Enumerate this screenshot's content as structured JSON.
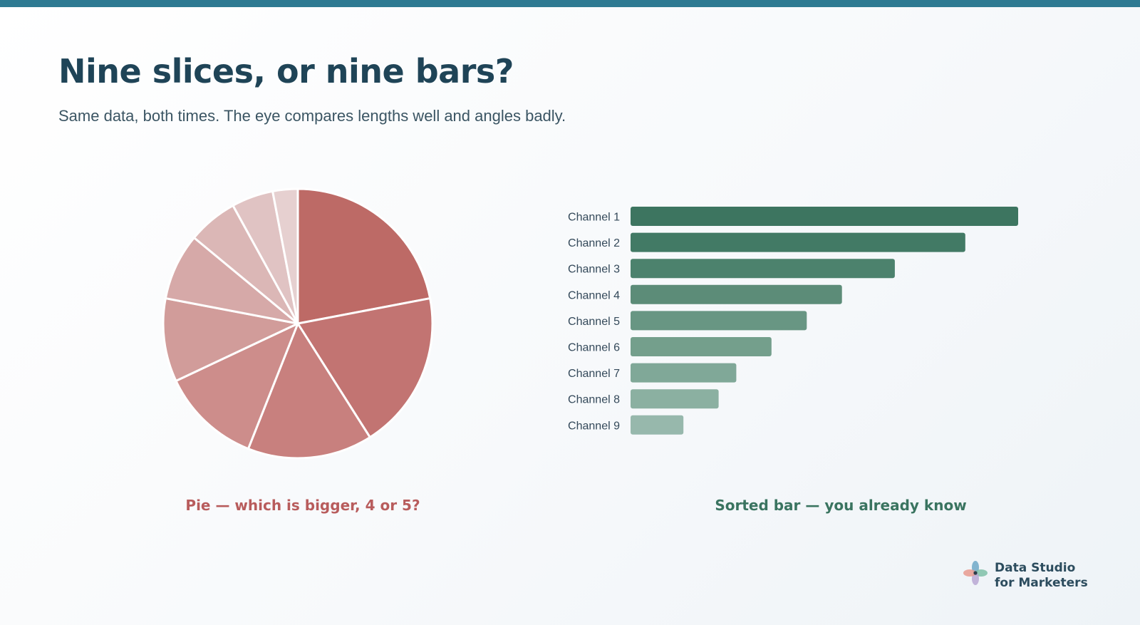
{
  "slide": {
    "title": "Nine slices, or nine bars?",
    "subtitle": "Same data, both times. The eye compares lengths well and angles badly.",
    "accent_color": "#2e7a92"
  },
  "captions": {
    "pie": "Pie — which is bigger, 4 or 5?",
    "bar": "Sorted bar — you already know"
  },
  "brand": {
    "line1": "Data Studio",
    "line2": "for Marketers"
  },
  "chart_data": [
    {
      "type": "pie",
      "categories": [
        "Channel 1",
        "Channel 2",
        "Channel 3",
        "Channel 4",
        "Channel 5",
        "Channel 6",
        "Channel 7",
        "Channel 8",
        "Channel 9"
      ],
      "values": [
        22,
        19,
        15,
        12,
        10,
        8,
        6,
        5,
        3
      ],
      "colors": [
        "#bd6a66",
        "#c27472",
        "#c8807e",
        "#cd8d8b",
        "#d19c9a",
        "#d6a9a8",
        "#dbb7b6",
        "#e0c3c3",
        "#e6d0d0"
      ],
      "start": "12 o'clock",
      "direction": "clockwise"
    },
    {
      "type": "bar",
      "orientation": "horizontal",
      "categories": [
        "Channel 1",
        "Channel 2",
        "Channel 3",
        "Channel 4",
        "Channel 5",
        "Channel 6",
        "Channel 7",
        "Channel 8",
        "Channel 9"
      ],
      "values": [
        22,
        19,
        15,
        12,
        10,
        8,
        6,
        5,
        3
      ],
      "colors": [
        "#3d7560",
        "#427a65",
        "#4c826d",
        "#5c8c78",
        "#689683",
        "#749f8c",
        "#80a898",
        "#8bb0a1",
        "#97b8ac"
      ],
      "xlim": [
        0,
        22
      ]
    }
  ]
}
